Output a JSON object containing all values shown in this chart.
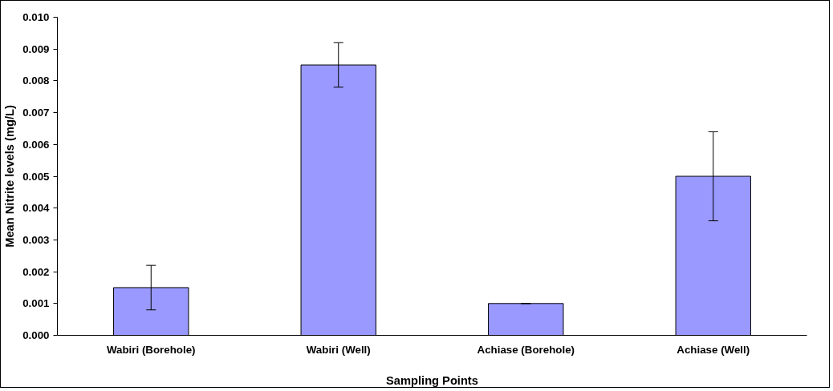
{
  "chart_data": {
    "type": "bar",
    "xlabel": "Sampling Points",
    "ylabel": "Mean Nitrite levels (mg/L)",
    "categories": [
      "Wabiri (Borehole)",
      "Wabiri (Well)",
      "Achiase (Borehole)",
      "Achiase (Well)"
    ],
    "values": [
      0.0015,
      0.0085,
      0.001,
      0.005
    ],
    "errors": [
      0.0007,
      0.0007,
      0,
      0.0014
    ],
    "color": "#9999ff",
    "ylim": [
      0,
      0.01
    ],
    "yticks": [
      {
        "value": 0,
        "label": "0.000"
      },
      {
        "value": 0.001,
        "label": "0.001"
      },
      {
        "value": 0.002,
        "label": "0.002"
      },
      {
        "value": 0.003,
        "label": "0.003"
      },
      {
        "value": 0.004,
        "label": "0.004"
      },
      {
        "value": 0.005,
        "label": "0.005"
      },
      {
        "value": 0.006,
        "label": "0.006"
      },
      {
        "value": 0.007,
        "label": "0.007"
      },
      {
        "value": 0.008,
        "label": "0.008"
      },
      {
        "value": 0.009,
        "label": "0.009"
      },
      {
        "value": 0.01,
        "label": "0.010"
      }
    ],
    "grid": false
  }
}
